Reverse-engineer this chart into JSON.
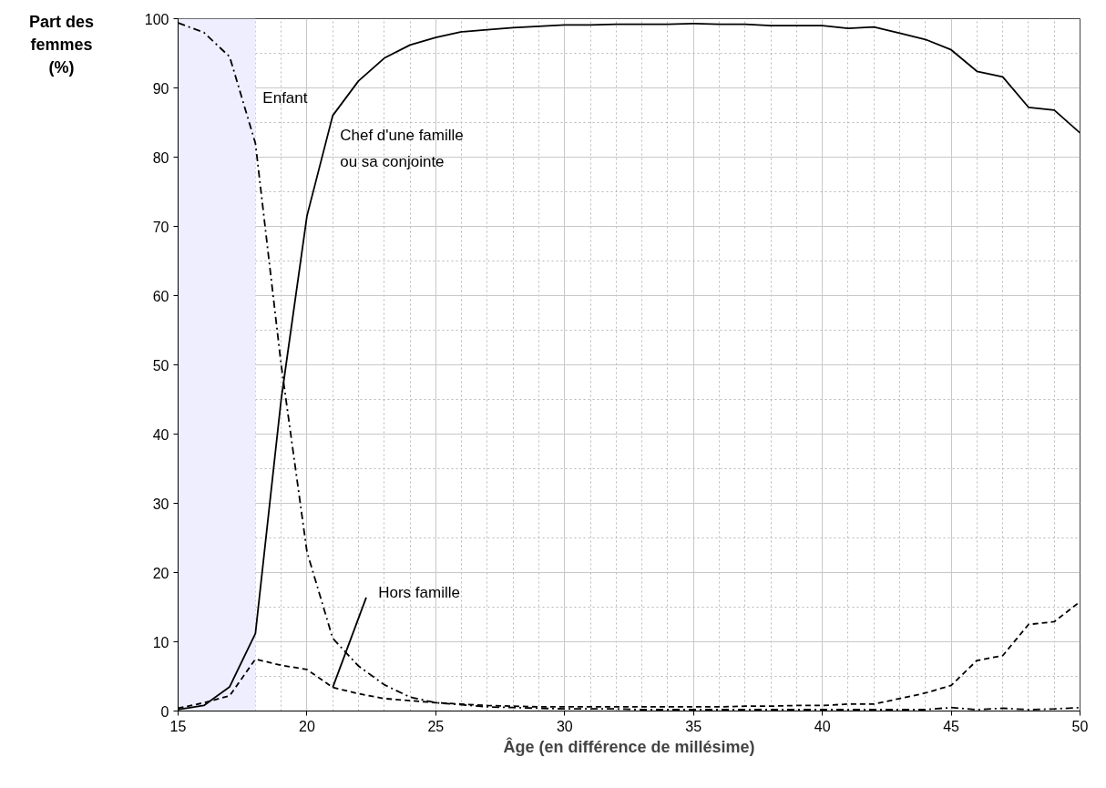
{
  "chart_data": {
    "type": "line",
    "xlabel": "Âge (en différence de millésime)",
    "ylabel": "Part des femmes (%)",
    "x": [
      15,
      16,
      17,
      18,
      19,
      20,
      21,
      22,
      23,
      24,
      25,
      26,
      27,
      28,
      29,
      30,
      31,
      32,
      33,
      34,
      35,
      36,
      37,
      38,
      39,
      40,
      41,
      42,
      43,
      44,
      45,
      46,
      47,
      48,
      49,
      50
    ],
    "series": [
      {
        "name": "Chef d'une famille ou sa conjointe",
        "color": "#000000",
        "line_style": "solid",
        "values": [
          0.2,
          0.8,
          3.5,
          11.2,
          45,
          71.5,
          86,
          91,
          94.3,
          96.2,
          97.3,
          98.1,
          98.4,
          98.7,
          98.9,
          99.1,
          99.1,
          99.2,
          99.2,
          99.2,
          99.3,
          99.2,
          99.2,
          99.0,
          99.0,
          99.0,
          98.6,
          98.8,
          97.9,
          97.0,
          95.5,
          92.4,
          91.6,
          87.2,
          86.8,
          83.5
        ]
      },
      {
        "name": "Enfant",
        "color": "#000000",
        "line_style": "dashdot",
        "values": [
          99.4,
          98,
          94.5,
          82,
          50,
          23,
          10.5,
          6.5,
          3.8,
          2,
          1.2,
          0.9,
          0.6,
          0.5,
          0.4,
          0.3,
          0.3,
          0.3,
          0.2,
          0.2,
          0.2,
          0.2,
          0.2,
          0.2,
          0.2,
          0.2,
          0.2,
          0.2,
          0.2,
          0.2,
          0.5,
          0.2,
          0.4,
          0.2,
          0.3,
          0.5
        ]
      },
      {
        "name": "Hors famille",
        "color": "#000000",
        "line_style": "dashed",
        "values": [
          0.4,
          1.2,
          2.2,
          7.5,
          6.6,
          6,
          3.4,
          2.5,
          1.8,
          1.5,
          1.2,
          1,
          0.8,
          0.7,
          0.6,
          0.6,
          0.6,
          0.6,
          0.6,
          0.6,
          0.6,
          0.6,
          0.7,
          0.7,
          0.8,
          0.8,
          1.0,
          1.0,
          1.8,
          2.6,
          3.7,
          7.3,
          8,
          12.5,
          12.9,
          15.8
        ]
      }
    ],
    "bands": [
      {
        "axis": "x",
        "from": 15,
        "to": 18,
        "color": "#eeeeff"
      }
    ],
    "xlim": [
      15,
      50
    ],
    "ylim": [
      0,
      100
    ],
    "xticks": [
      15,
      20,
      25,
      30,
      35,
      40,
      45,
      50
    ],
    "yticks": [
      0,
      10,
      20,
      30,
      40,
      50,
      60,
      70,
      80,
      90,
      100
    ],
    "grid": true,
    "legend": false,
    "marker": "none"
  }
}
